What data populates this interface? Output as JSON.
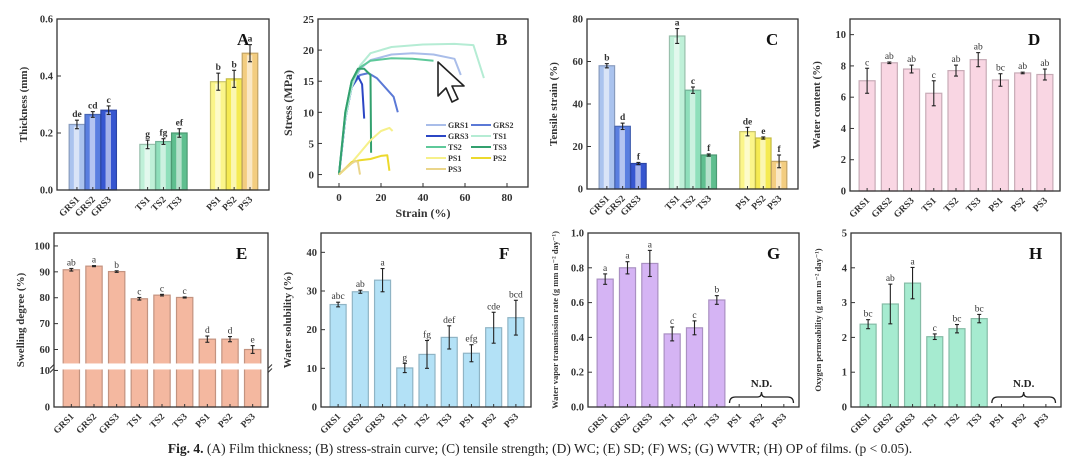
{
  "figure": {
    "caption_label": "Fig. 4.",
    "caption_text": " (A) Film thickness; (B) stress-strain curve; (C) tensile strength; (D) WC; (E) SD; (F) WS; (G) WVTR; (H) OP of films. (p < 0.05)."
  },
  "chart_data": [
    {
      "panel": "A",
      "type": "bar",
      "title": "",
      "panel_label": "A",
      "xlabel": "",
      "ylabel": "Thickness (mm)",
      "ylim": [
        0,
        0.6
      ],
      "yticks": [
        0.0,
        0.2,
        0.4,
        0.6
      ],
      "ytick_labels": [
        "0.0",
        "0.2",
        "0.4",
        "0.6"
      ],
      "grouped": true,
      "categories": [
        "GRS1",
        "GRS2",
        "GRS3",
        "TS1",
        "TS2",
        "TS3",
        "PS1",
        "PS2",
        "PS3"
      ],
      "values": [
        0.23,
        0.265,
        0.28,
        0.16,
        0.17,
        0.2,
        0.38,
        0.39,
        0.48
      ],
      "errors": [
        0.015,
        0.01,
        0.015,
        0.015,
        0.01,
        0.015,
        0.03,
        0.03,
        0.03
      ],
      "letters": [
        "de",
        "cd",
        "c",
        "g",
        "fg",
        "ef",
        "b",
        "b",
        "a"
      ],
      "colors": [
        "#aac3ee",
        "#5a7fe0",
        "#3656d0",
        "#bff0d8",
        "#8fdfbb",
        "#5fbf8f",
        "#fbf58a",
        "#f5ea52",
        "#f3cd80"
      ]
    },
    {
      "panel": "B",
      "type": "line",
      "title": "",
      "panel_label": "B",
      "xlabel": "Strain (%)",
      "ylabel": "Stress (MPa)",
      "xlim": [
        -10,
        90
      ],
      "ylim": [
        -2,
        25
      ],
      "xticks": [
        0,
        20,
        40,
        60,
        80
      ],
      "yticks": [
        0,
        5,
        10,
        15,
        20,
        25
      ],
      "legend_position": "lower-right",
      "series": [
        {
          "name": "GRS1",
          "color": "#a9bde9",
          "x": [
            0,
            3,
            6,
            10,
            15,
            25,
            35,
            45,
            55,
            58
          ],
          "y": [
            0,
            9,
            14,
            17,
            18.4,
            19.3,
            19.5,
            19.3,
            18.6,
            16
          ]
        },
        {
          "name": "GRS2",
          "color": "#5b79d6",
          "x": [
            0,
            3,
            6,
            10,
            14,
            18,
            22,
            26,
            28
          ],
          "y": [
            0,
            9,
            14,
            16,
            16.3,
            15.5,
            14,
            12.5,
            10
          ]
        },
        {
          "name": "GRS3",
          "color": "#2b46c4",
          "x": [
            0,
            3,
            6,
            9,
            11,
            12
          ],
          "y": [
            0,
            9,
            14,
            15.8,
            14.5,
            9
          ]
        },
        {
          "name": "TS1",
          "color": "#b5ecd4",
          "x": [
            0,
            3,
            6,
            10,
            15,
            25,
            40,
            55,
            64,
            69
          ],
          "y": [
            0,
            9,
            14,
            17.5,
            19.5,
            20.5,
            20.9,
            21,
            20.8,
            15.5
          ]
        },
        {
          "name": "TS2",
          "color": "#5ec99a",
          "x": [
            0,
            3,
            6,
            10,
            15,
            25,
            35,
            45
          ],
          "y": [
            0,
            10,
            15,
            17.2,
            18.3,
            18.7,
            18.6,
            18.3
          ]
        },
        {
          "name": "TS3",
          "color": "#32a06e",
          "x": [
            0,
            3,
            6,
            9,
            12,
            15,
            15.3
          ],
          "y": [
            0,
            10,
            15,
            17,
            17,
            16,
            3.5
          ]
        },
        {
          "name": "PS1",
          "color": "#f6f08a",
          "x": [
            0,
            5,
            10,
            15,
            20,
            24,
            25.5
          ],
          "y": [
            0,
            1.5,
            3.5,
            5.5,
            7,
            7.5,
            7
          ]
        },
        {
          "name": "PS2",
          "color": "#ecd92c",
          "x": [
            0,
            3,
            6,
            10,
            15,
            20,
            23,
            24
          ],
          "y": [
            0,
            1,
            2,
            2.3,
            2.5,
            3,
            3.1,
            0.6
          ]
        },
        {
          "name": "PS3",
          "color": "#ead58a",
          "x": [
            0,
            3,
            6,
            8,
            9,
            10
          ],
          "y": [
            0,
            1,
            1.8,
            2.2,
            2,
            0
          ]
        }
      ]
    },
    {
      "panel": "C",
      "type": "bar",
      "title": "",
      "panel_label": "C",
      "xlabel": "",
      "ylabel": "Tensile strain (%)",
      "ylim": [
        0,
        80
      ],
      "yticks": [
        0,
        20,
        40,
        60,
        80
      ],
      "ytick_labels": [
        "0",
        "20",
        "40",
        "60",
        "80"
      ],
      "grouped": true,
      "categories": [
        "GRS1",
        "GRS2",
        "GRS3",
        "TS1",
        "TS2",
        "TS3",
        "PS1",
        "PS2",
        "PS3"
      ],
      "values": [
        58,
        29.5,
        12,
        72,
        46.5,
        16,
        27,
        24,
        13
      ],
      "errors": [
        1,
        1.5,
        0.5,
        3.5,
        1.5,
        0.5,
        2,
        0.5,
        3
      ],
      "letters": [
        "b",
        "d",
        "f",
        "a",
        "c",
        "f",
        "de",
        "e",
        "f"
      ],
      "colors": [
        "#aac3ee",
        "#5a7fe0",
        "#3656d0",
        "#bff0d8",
        "#8fdfbb",
        "#5fbf8f",
        "#fbf58a",
        "#f5ea52",
        "#f3cd80"
      ]
    },
    {
      "panel": "D",
      "type": "bar",
      "title": "",
      "panel_label": "D",
      "xlabel": "",
      "ylabel": "Water content (%)",
      "ylim": [
        0,
        11
      ],
      "yticks": [
        0,
        2,
        4,
        6,
        8,
        10
      ],
      "ytick_labels": [
        "0",
        "2",
        "4",
        "6",
        "8",
        "10"
      ],
      "grouped": false,
      "categories": [
        "GRS1",
        "GRS2",
        "GRS3",
        "TS1",
        "TS2",
        "TS3",
        "PS1",
        "PS2",
        "PS3"
      ],
      "values": [
        7.05,
        8.2,
        7.8,
        6.25,
        7.7,
        8.4,
        7.1,
        7.55,
        7.45
      ],
      "errors": [
        0.8,
        0.05,
        0.25,
        0.8,
        0.35,
        0.45,
        0.4,
        0.05,
        0.35
      ],
      "letters": [
        "c",
        "ab",
        "ab",
        "c",
        "ab",
        "ab",
        "bc",
        "ab",
        "ab"
      ],
      "colors": [
        "#f9d6e3"
      ]
    },
    {
      "panel": "E",
      "type": "bar",
      "title": "",
      "panel_label": "E",
      "xlabel": "",
      "ylabel": "Swelling degree (%)",
      "axis_break": [
        10,
        55
      ],
      "ylim": [
        0,
        105
      ],
      "yticks": [
        0,
        10,
        60,
        70,
        80,
        90,
        100
      ],
      "ytick_labels": [
        "0",
        "10",
        "60",
        "70",
        "80",
        "90",
        "100"
      ],
      "grouped": false,
      "categories": [
        "GRS1",
        "GRS2",
        "GRS3",
        "TS1",
        "TS2",
        "TS3",
        "PS1",
        "PS2",
        "PS3"
      ],
      "values": [
        90.8,
        92.2,
        90.1,
        79.6,
        81.0,
        80.1,
        64.0,
        64.0,
        60.0
      ],
      "errors": [
        0.5,
        0.2,
        0.3,
        0.5,
        0.3,
        0.2,
        1.2,
        1.0,
        1.5
      ],
      "letters": [
        "ab",
        "a",
        "b",
        "c",
        "c",
        "c",
        "d",
        "d",
        "e"
      ],
      "colors": [
        "#f4b8a0"
      ]
    },
    {
      "panel": "F",
      "type": "bar",
      "title": "",
      "panel_label": "F",
      "xlabel": "",
      "ylabel": "Water solubility (%)",
      "ylim": [
        0,
        45
      ],
      "yticks": [
        0,
        10,
        20,
        30,
        40
      ],
      "ytick_labels": [
        "0",
        "10",
        "20",
        "30",
        "40"
      ],
      "grouped": false,
      "categories": [
        "GRS1",
        "GRS2",
        "GRS3",
        "TS1",
        "TS2",
        "TS3",
        "PS1",
        "PS2",
        "PS3"
      ],
      "values": [
        26.5,
        29.8,
        32.8,
        10.1,
        13.6,
        18.0,
        13.9,
        20.5,
        23.1
      ],
      "errors": [
        0.6,
        0.4,
        3.0,
        1.2,
        3.6,
        3.0,
        2.2,
        4.0,
        4.5
      ],
      "letters": [
        "abc",
        "ab",
        "a",
        "g",
        "fg",
        "def",
        "efg",
        "cde",
        "bcd"
      ],
      "colors": [
        "#b3e1f6"
      ]
    },
    {
      "panel": "G",
      "type": "bar",
      "title": "",
      "panel_label": "G",
      "xlabel": "",
      "ylabel": "Water vapor transmission rate (g mm m⁻² day⁻¹)",
      "ylim": [
        0,
        1.0
      ],
      "yticks": [
        0.0,
        0.2,
        0.4,
        0.6,
        0.8,
        1.0
      ],
      "ytick_labels": [
        "0.0",
        "0.2",
        "0.4",
        "0.6",
        "0.8",
        "1.0"
      ],
      "grouped": false,
      "categories": [
        "GRS1",
        "GRS2",
        "GRS3",
        "TS1",
        "TS2",
        "TS3",
        "PS1",
        "PS2",
        "PS3"
      ],
      "values": [
        0.735,
        0.8,
        0.825,
        0.42,
        0.455,
        0.615,
        null,
        null,
        null
      ],
      "errors": [
        0.03,
        0.035,
        0.075,
        0.04,
        0.04,
        0.025,
        null,
        null,
        null
      ],
      "letters": [
        "a",
        "a",
        "a",
        "c",
        "c",
        "b",
        "",
        "",
        ""
      ],
      "annotation": "N.D.",
      "colors": [
        "#d5b4f4"
      ]
    },
    {
      "panel": "H",
      "type": "bar",
      "title": "",
      "panel_label": "H",
      "xlabel": "",
      "ylabel": "Oxygen permeability (g mm m⁻² day⁻¹)",
      "ylim": [
        0,
        5
      ],
      "yticks": [
        0,
        1,
        2,
        3,
        4,
        5
      ],
      "ytick_labels": [
        "0",
        "1",
        "2",
        "3",
        "4",
        "5"
      ],
      "grouped": false,
      "categories": [
        "GRS1",
        "GRS2",
        "GRS3",
        "TS1",
        "TS2",
        "TS3",
        "PS1",
        "PS2",
        "PS3"
      ],
      "values": [
        2.38,
        2.96,
        3.56,
        2.02,
        2.25,
        2.54,
        null,
        null,
        null
      ],
      "errors": [
        0.13,
        0.57,
        0.45,
        0.08,
        0.12,
        0.12,
        null,
        null,
        null
      ],
      "letters": [
        "bc",
        "ab",
        "a",
        "c",
        "bc",
        "bc",
        "",
        "",
        ""
      ],
      "annotation": "N.D.",
      "colors": [
        "#a6ebd0"
      ]
    }
  ]
}
